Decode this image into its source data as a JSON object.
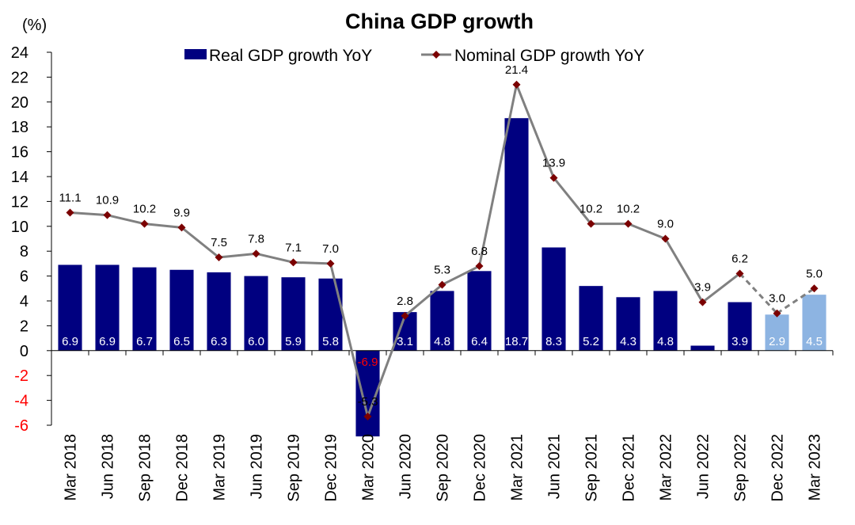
{
  "chart_data": {
    "type": "bar",
    "title": "China GDP growth",
    "unit_label": "(%)",
    "categories": [
      "Mar 2018",
      "Jun 2018",
      "Sep 2018",
      "Dec 2018",
      "Mar 2019",
      "Jun 2019",
      "Sep 2019",
      "Dec 2019",
      "Mar 2020",
      "Jun 2020",
      "Sep 2020",
      "Dec 2020",
      "Mar 2021",
      "Jun 2021",
      "Sep 2021",
      "Dec 2021",
      "Mar 2022",
      "Jun 2022",
      "Sep 2022",
      "Dec 2022",
      "Mar 2023"
    ],
    "ylim": [
      -6,
      24
    ],
    "y_ticks": [
      "24",
      "22",
      "20",
      "18",
      "16",
      "14",
      "12",
      "10",
      "8",
      "6",
      "4",
      "2",
      "0",
      "-2",
      "-4",
      "-6"
    ],
    "grid": false,
    "legend_position": "top-center",
    "series": [
      {
        "name": "Real GDP growth YoY",
        "type": "bar",
        "color": "#000080",
        "forecast_color": "#8DB4E2",
        "values": [
          6.9,
          6.9,
          6.7,
          6.5,
          6.3,
          6.0,
          5.9,
          5.8,
          -6.9,
          3.1,
          4.8,
          6.4,
          18.7,
          8.3,
          5.2,
          4.3,
          4.8,
          0.4,
          3.9,
          2.9,
          4.5
        ],
        "labels": [
          "6.9",
          "6.9",
          "6.7",
          "6.5",
          "6.3",
          "6.0",
          "5.9",
          "5.8",
          "-6.9",
          "3.1",
          "4.8",
          "6.4",
          "18.7",
          "8.3",
          "5.2",
          "4.3",
          "4.8",
          "",
          "3.9",
          "2.9",
          "4.5"
        ],
        "forecast_start_index": 19
      },
      {
        "name": "Nominal GDP growth YoY",
        "type": "line",
        "color": "#808080",
        "marker_color": "#7B0000",
        "values": [
          11.1,
          10.9,
          10.2,
          9.9,
          7.5,
          7.8,
          7.1,
          7.0,
          -5.3,
          2.8,
          5.3,
          6.8,
          21.4,
          13.9,
          10.2,
          10.2,
          9.0,
          3.9,
          6.2,
          3.0,
          5.0
        ],
        "labels": [
          "11.1",
          "10.9",
          "10.2",
          "9.9",
          "7.5",
          "7.8",
          "7.1",
          "7.0",
          "-5.3",
          "2.8",
          "5.3",
          "6.8",
          "21.4",
          "13.9",
          "10.2",
          "10.2",
          "9.0",
          "3.9",
          "6.2",
          "3.0",
          "5.0"
        ],
        "dashed_from_index": 18
      }
    ],
    "negative_tick_color": "#FF0000"
  }
}
